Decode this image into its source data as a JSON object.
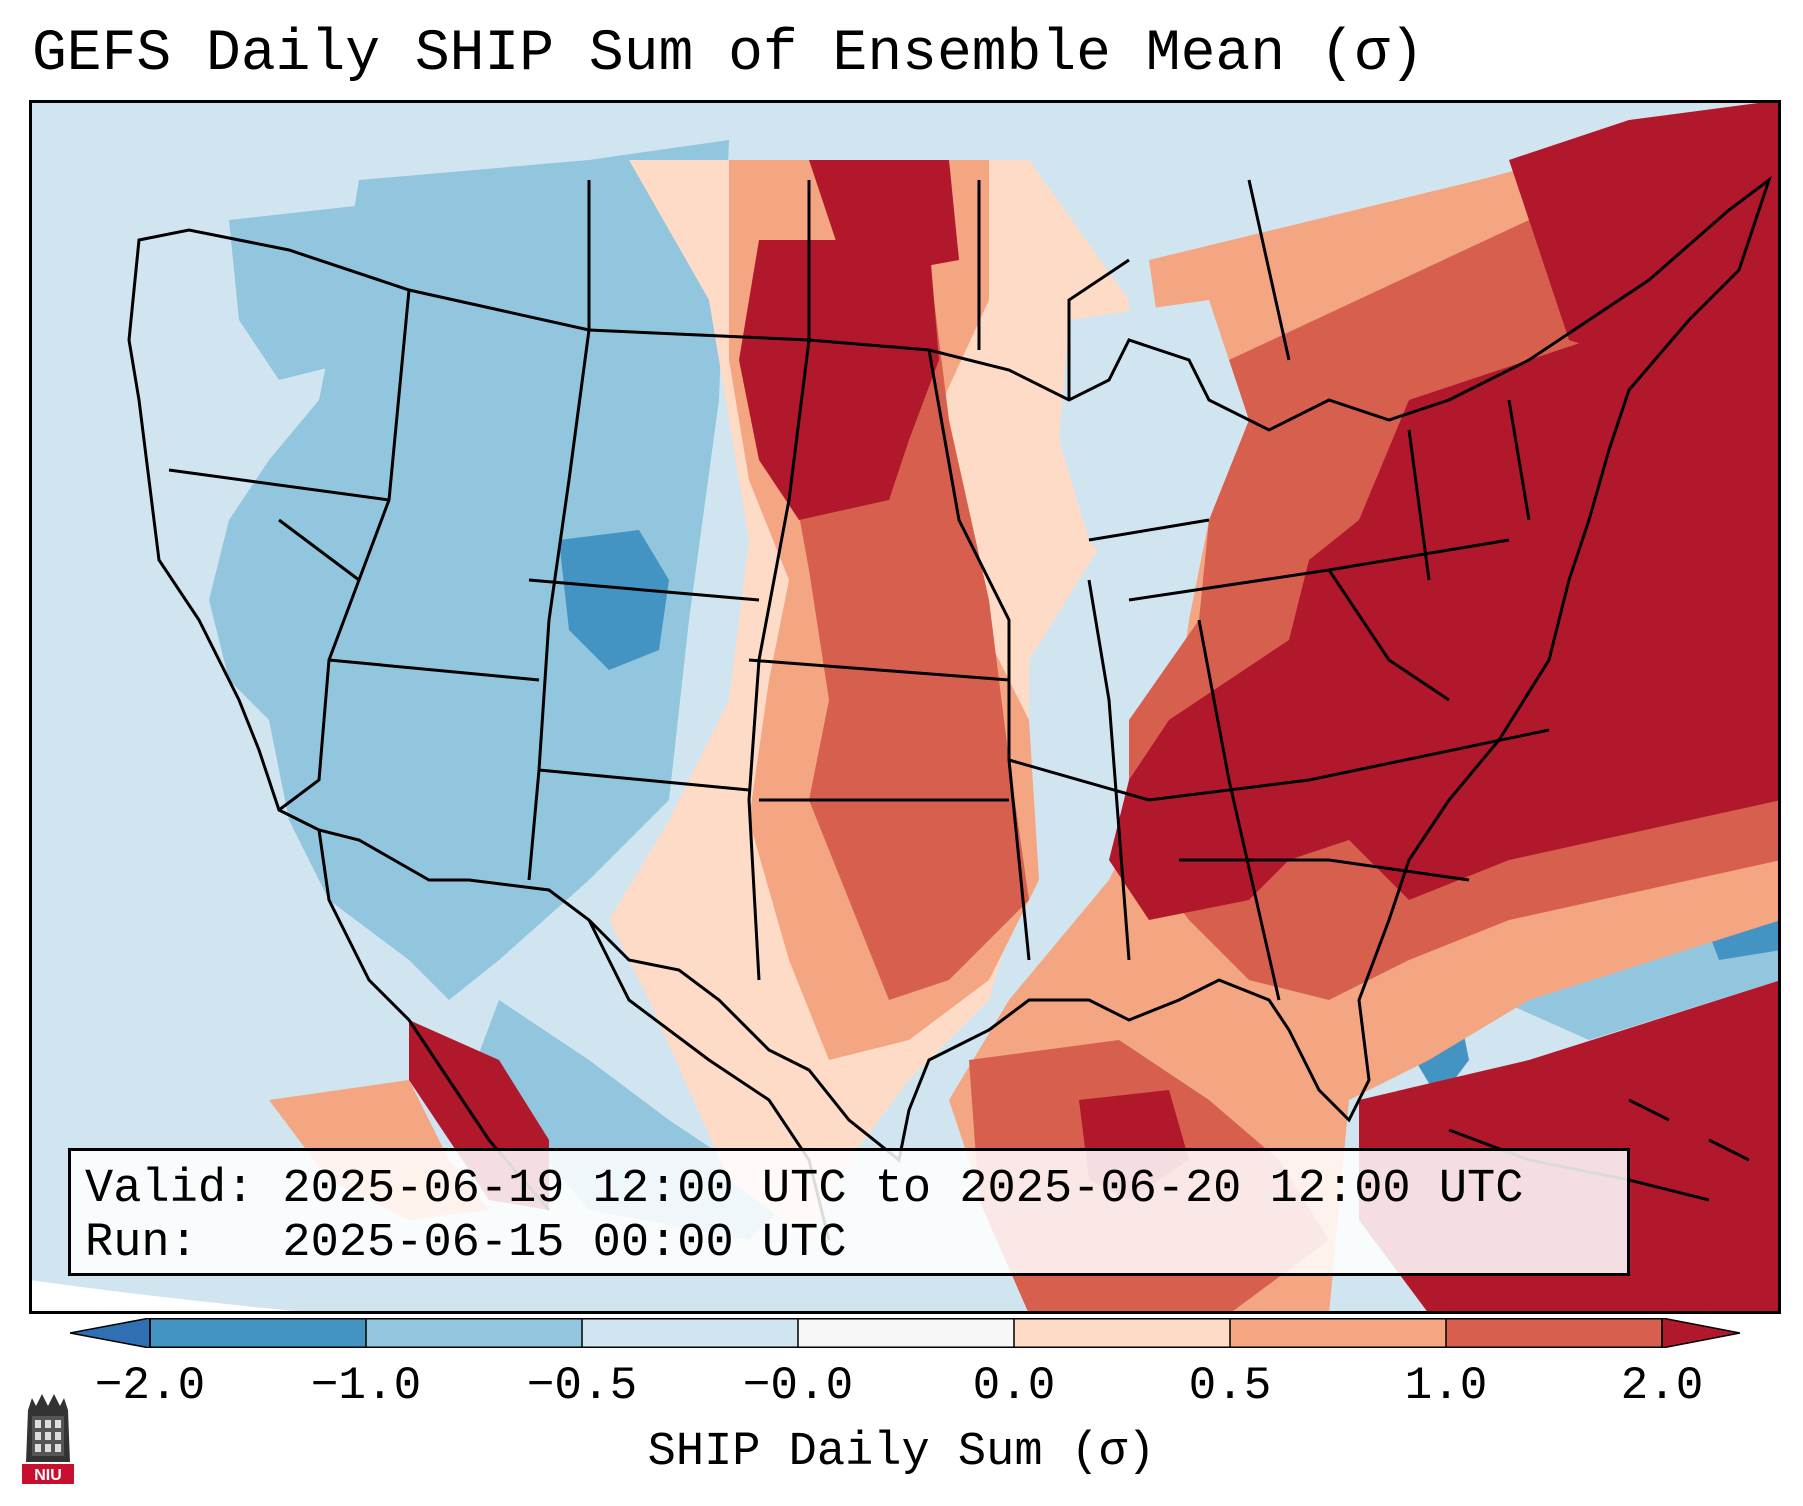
{
  "title": "GEFS Daily SHIP Sum of Ensemble Mean (σ)",
  "info": {
    "valid": "Valid: 2025-06-19 12:00 UTC to 2025-06-20 12:00 UTC",
    "run": "Run:   2025-06-15 00:00 UTC"
  },
  "colorbar": {
    "label": "SHIP Daily Sum (σ)",
    "ticks": [
      "−2.0",
      "−1.0",
      "−0.5",
      "−0.0",
      "0.0",
      "0.5",
      "1.0",
      "2.0"
    ],
    "colors": {
      "extend_low": "#2f6fb3",
      "bin1": "#4393c3",
      "bin2": "#92c5de",
      "bin3": "#d1e5f0",
      "bin4": "#f7f7f7",
      "bin5": "#fddbc7",
      "bin6": "#f4a582",
      "bin7": "#d6604d",
      "bin8": "#b2182b",
      "extend_high": "#8b0f22"
    }
  },
  "logo": {
    "text": "NIU"
  }
}
